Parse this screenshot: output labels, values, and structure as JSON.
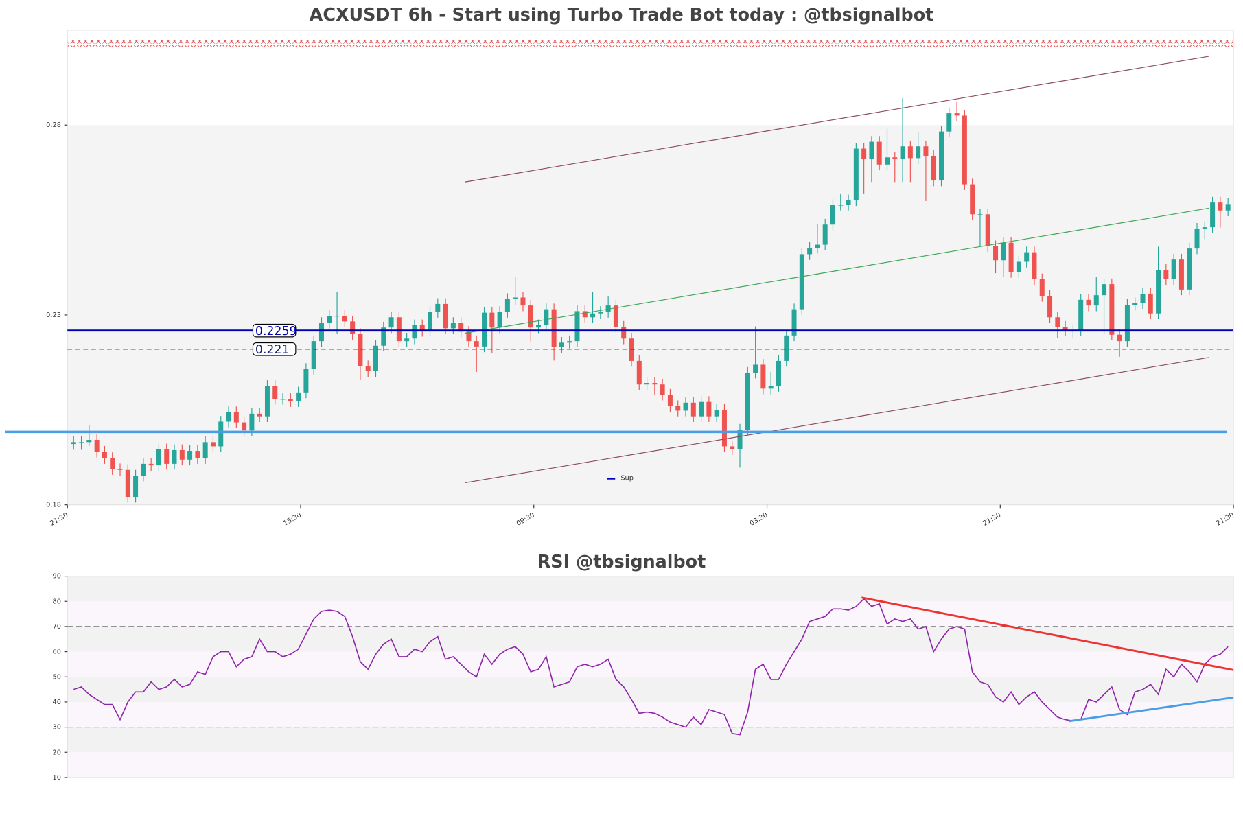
{
  "chart_data": [
    {
      "type": "candlestick",
      "title": "ACXUSDT 6h - Start using Turbo Trade Bot today : @tbsignalbot",
      "first_open": 0.196,
      "close": [
        0.1965,
        0.1965,
        0.1971,
        0.194,
        0.1923,
        0.1894,
        0.1892,
        0.1821,
        0.1877,
        0.1908,
        0.1904,
        0.1946,
        0.1908,
        0.1944,
        0.1919,
        0.1942,
        0.1923,
        0.1965,
        0.1954,
        0.2019,
        0.2044,
        0.2017,
        0.1996,
        0.204,
        0.2033,
        0.2113,
        0.2079,
        0.2079,
        0.2073,
        0.2096,
        0.2158,
        0.2231,
        0.2279,
        0.2298,
        0.2298,
        0.2283,
        0.225,
        0.2165,
        0.2152,
        0.2219,
        0.2267,
        0.2294,
        0.2231,
        0.2238,
        0.2273,
        0.2258,
        0.2308,
        0.2329,
        0.2265,
        0.2279,
        0.2256,
        0.2231,
        0.2217,
        0.2306,
        0.2267,
        0.2308,
        0.2342,
        0.2346,
        0.2325,
        0.2267,
        0.2273,
        0.2315,
        0.2215,
        0.2227,
        0.2231,
        0.231,
        0.2294,
        0.2304,
        0.2308,
        0.2325,
        0.2269,
        0.2238,
        0.2179,
        0.2117,
        0.2121,
        0.2117,
        0.209,
        0.206,
        0.2048,
        0.2069,
        0.2033,
        0.2071,
        0.2033,
        0.205,
        0.1954,
        0.1946,
        0.1998,
        0.2148,
        0.2169,
        0.2106,
        0.2113,
        0.2179,
        0.2246,
        0.2315,
        0.246,
        0.2477,
        0.2485,
        0.2538,
        0.259,
        0.259,
        0.2602,
        0.2738,
        0.271,
        0.2756,
        0.2696,
        0.2715,
        0.271,
        0.2744,
        0.2713,
        0.2744,
        0.2719,
        0.2654,
        0.2783,
        0.2831,
        0.2825,
        0.2644,
        0.2565,
        0.2565,
        0.2481,
        0.2444,
        0.249,
        0.2413,
        0.244,
        0.2465,
        0.2394,
        0.235,
        0.2294,
        0.2269,
        0.226,
        0.226,
        0.234,
        0.2325,
        0.2352,
        0.2381,
        0.2248,
        0.2231,
        0.2327,
        0.2331,
        0.2356,
        0.2304,
        0.2419,
        0.2394,
        0.2446,
        0.2367,
        0.2475,
        0.2527,
        0.2531,
        0.2596,
        0.2575,
        0.2592
      ],
      "high": [
        0.198,
        0.198,
        0.201,
        0.1986,
        0.1955,
        0.1938,
        0.1909,
        0.1907,
        0.1892,
        0.1923,
        0.1923,
        0.1961,
        0.1961,
        0.1959,
        0.1959,
        0.1957,
        0.1957,
        0.198,
        0.198,
        0.2034,
        0.2059,
        0.2059,
        0.2032,
        0.2055,
        0.2055,
        0.2128,
        0.2128,
        0.2094,
        0.2094,
        0.2111,
        0.2173,
        0.2246,
        0.2294,
        0.2313,
        0.236,
        0.2313,
        0.2298,
        0.2265,
        0.218,
        0.2234,
        0.2282,
        0.2309,
        0.2309,
        0.2253,
        0.2288,
        0.2288,
        0.2323,
        0.2344,
        0.2344,
        0.2294,
        0.2294,
        0.2271,
        0.2246,
        0.2321,
        0.2321,
        0.2323,
        0.2357,
        0.24,
        0.2361,
        0.234,
        0.2288,
        0.233,
        0.233,
        0.2242,
        0.2246,
        0.2325,
        0.2325,
        0.236,
        0.2323,
        0.235,
        0.234,
        0.2284,
        0.2253,
        0.2194,
        0.2136,
        0.2136,
        0.2132,
        0.2105,
        0.2075,
        0.2084,
        0.2084,
        0.2086,
        0.2086,
        0.2065,
        0.2065,
        0.1969,
        0.2013,
        0.2163,
        0.227,
        0.2184,
        0.215,
        0.2194,
        0.2261,
        0.233,
        0.2475,
        0.2492,
        0.254,
        0.2553,
        0.2605,
        0.262,
        0.2617,
        0.2753,
        0.2753,
        0.2771,
        0.2771,
        0.279,
        0.273,
        0.2871,
        0.2759,
        0.278,
        0.2759,
        0.2734,
        0.2798,
        0.2846,
        0.286,
        0.284,
        0.2659,
        0.258,
        0.258,
        0.2496,
        0.2505,
        0.2505,
        0.2455,
        0.248,
        0.248,
        0.2409,
        0.2365,
        0.2309,
        0.2284,
        0.2275,
        0.2355,
        0.2355,
        0.24,
        0.2396,
        0.2396,
        0.2263,
        0.2342,
        0.2346,
        0.2371,
        0.2371,
        0.248,
        0.2434,
        0.2461,
        0.2461,
        0.249,
        0.2542,
        0.2546,
        0.2611,
        0.2611,
        0.2607
      ],
      "low": [
        0.1945,
        0.1945,
        0.1955,
        0.1925,
        0.1908,
        0.1879,
        0.1877,
        0.1806,
        0.1806,
        0.1862,
        0.1889,
        0.1889,
        0.1893,
        0.1893,
        0.1904,
        0.1904,
        0.1908,
        0.1908,
        0.1939,
        0.1939,
        0.2004,
        0.2002,
        0.1981,
        0.1981,
        0.2018,
        0.2018,
        0.2064,
        0.2064,
        0.2058,
        0.2058,
        0.2081,
        0.2143,
        0.2216,
        0.2264,
        0.225,
        0.2268,
        0.2235,
        0.213,
        0.2137,
        0.2137,
        0.2204,
        0.2252,
        0.2216,
        0.2216,
        0.2223,
        0.2243,
        0.2243,
        0.2293,
        0.225,
        0.225,
        0.2241,
        0.2216,
        0.215,
        0.2202,
        0.22,
        0.2252,
        0.2293,
        0.2327,
        0.231,
        0.223,
        0.2252,
        0.2258,
        0.218,
        0.22,
        0.2212,
        0.2216,
        0.2279,
        0.2279,
        0.2289,
        0.2293,
        0.2254,
        0.2223,
        0.2164,
        0.2102,
        0.2102,
        0.209,
        0.2075,
        0.2045,
        0.2033,
        0.2033,
        0.2018,
        0.2018,
        0.2018,
        0.2018,
        0.1939,
        0.1931,
        0.1898,
        0.1983,
        0.2133,
        0.2091,
        0.2091,
        0.2098,
        0.2164,
        0.2231,
        0.23,
        0.2445,
        0.2462,
        0.247,
        0.2523,
        0.2575,
        0.2575,
        0.2587,
        0.262,
        0.265,
        0.2681,
        0.2681,
        0.265,
        0.265,
        0.265,
        0.2698,
        0.26,
        0.2639,
        0.2639,
        0.2768,
        0.281,
        0.2629,
        0.255,
        0.248,
        0.2466,
        0.241,
        0.24,
        0.2398,
        0.2398,
        0.2425,
        0.2379,
        0.2335,
        0.2279,
        0.224,
        0.2245,
        0.224,
        0.2245,
        0.231,
        0.231,
        0.225,
        0.2233,
        0.219,
        0.2216,
        0.2312,
        0.2316,
        0.2289,
        0.2289,
        0.2379,
        0.2379,
        0.2352,
        0.2352,
        0.246,
        0.25,
        0.2516,
        0.253,
        0.256
      ],
      "up_color": "#26a69a",
      "down_color": "#ef5350",
      "xlim": [
        -0.8,
        149.7
      ],
      "xticks": [
        {
          "value": -0.8,
          "label": "21:30"
        },
        {
          "value": 29.3,
          "label": "15:30"
        },
        {
          "value": 59.4,
          "label": "09:30"
        },
        {
          "value": 89.5,
          "label": "03:30"
        },
        {
          "value": 119.6,
          "label": "21:30"
        },
        {
          "value": 149.7,
          "label": "21:30"
        }
      ],
      "ylim": [
        0.18,
        0.305
      ],
      "yticks": [
        0.18,
        0.23,
        0.28
      ],
      "levels": [
        {
          "value": 0.2259,
          "style": "solid",
          "color": "#0000b0"
        },
        {
          "value": 0.221,
          "style": "dashed",
          "color": "#1a237e"
        }
      ],
      "support": {
        "value": 0.1992,
        "color": "#4a9ee8"
      },
      "legend": {
        "name": "Sup",
        "color": "#0000c0"
      },
      "channel": [
        {
          "x": [
            50.5,
            146.5
          ],
          "y": [
            0.265,
            0.2981
          ],
          "color": "#8b4a5a"
        },
        {
          "x": [
            50.5,
            146.5
          ],
          "y": [
            0.2252,
            0.2581
          ],
          "color": "#3aa655"
        },
        {
          "x": [
            50.5,
            146.5
          ],
          "y": [
            0.1858,
            0.2188
          ],
          "color": "#8b4a5a"
        }
      ]
    },
    {
      "type": "line",
      "title": "RSI @tbsignalbot",
      "color": "#8e24aa",
      "values": [
        45,
        46,
        43,
        41,
        39,
        39,
        33,
        40,
        44,
        44,
        48,
        45,
        46,
        49,
        46,
        47,
        52,
        51,
        58,
        60,
        60,
        54,
        57,
        58,
        65,
        60,
        60,
        58,
        59,
        61,
        67,
        73,
        76,
        76.5,
        76,
        74,
        66,
        56,
        53,
        59,
        63,
        65,
        58,
        58,
        61,
        60,
        64,
        66,
        57,
        58,
        55,
        52,
        50,
        59,
        55,
        59,
        61,
        62,
        59,
        52,
        53,
        58,
        46,
        47,
        48,
        54,
        55,
        54,
        55,
        57,
        49,
        46,
        41,
        35.5,
        36,
        35.5,
        34,
        32,
        31,
        30,
        34,
        31,
        37,
        36,
        35,
        27.5,
        27,
        36,
        53,
        55,
        49,
        49,
        55,
        60,
        65,
        72,
        73,
        74,
        77,
        77,
        76.5,
        78,
        81,
        78,
        79,
        71,
        73,
        72,
        73,
        69,
        70,
        60,
        65,
        69,
        70,
        69,
        52,
        48,
        47,
        42,
        40,
        44,
        39,
        42,
        44,
        40,
        37,
        34,
        33,
        32.5,
        33,
        41,
        40,
        43,
        46,
        37,
        35,
        44,
        45,
        47,
        43,
        53,
        50,
        55,
        52,
        48,
        55,
        58,
        59,
        62
      ],
      "xlim": [
        -0.8,
        149.7
      ],
      "ylim": [
        10,
        90
      ],
      "yticks": [
        10,
        20,
        30,
        40,
        50,
        60,
        70,
        80,
        90
      ],
      "hlines": [
        70,
        30
      ],
      "trendlines": [
        {
          "x": [
            101.7,
            149.7
          ],
          "y": [
            81.5,
            52.7
          ],
          "color": "#ee3333"
        },
        {
          "x": [
            128.5,
            149.7
          ],
          "y": [
            32.4,
            41.8
          ],
          "color": "#4a9ee8"
        }
      ]
    }
  ]
}
